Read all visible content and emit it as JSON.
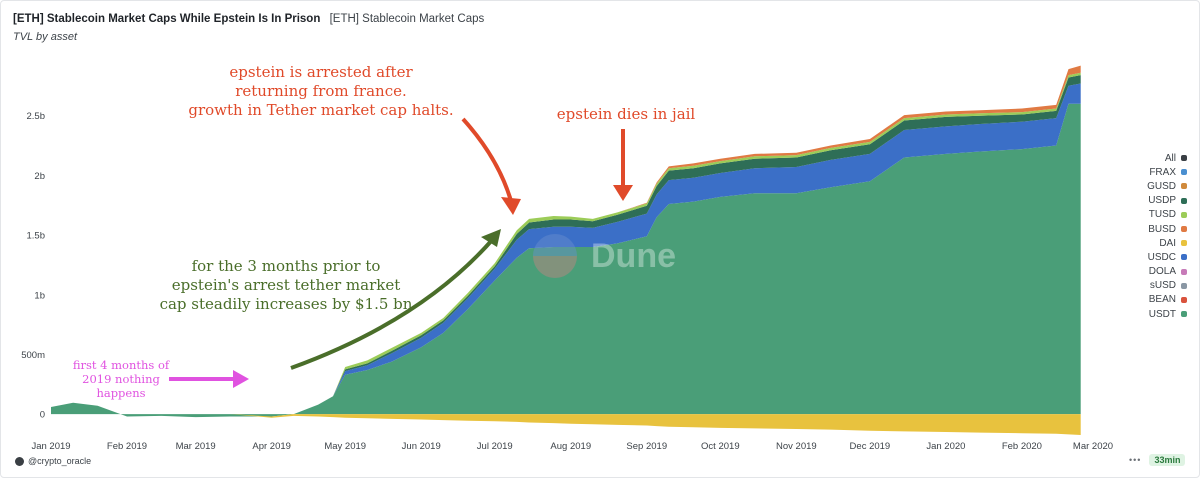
{
  "header": {
    "title": "[ETH] Stablecoin Market Caps While Epstein Is In Prison",
    "tab_label": "[ETH] Stablecoin Market Caps",
    "subtitle": "TVL by asset"
  },
  "watermark": "Dune",
  "footer": {
    "handle": "@crypto_oracle",
    "more": "•••",
    "refresh": "33min"
  },
  "annotations": {
    "arrest": [
      "epstein is arrested after",
      "returning from france.",
      "growth in Tether market cap halts."
    ],
    "dies": "epstein dies in jail",
    "prior": [
      "for the 3  months prior to",
      "epstein's arrest tether market",
      "cap steadily increases by $1.5 bn"
    ],
    "first": [
      "first 4 months of",
      "2019 nothing",
      "happens"
    ]
  },
  "colors": {
    "USDT": "#4a9e78",
    "USDC": "#3b6fc7",
    "USDP": "#2e6e57",
    "BUSD": "#e07a43",
    "TUSD": "#9ccc58",
    "DAI": "#e8c23e",
    "FRAX": "#4a8fd0",
    "GUSD": "#d08a3c",
    "DOLA": "#c77ab8",
    "sUSD": "#8a97a4",
    "BEAN": "#d9533d",
    "All": "#3a3f44",
    "arrest_annotation": "#e04a2a",
    "prior_annotation": "#4a6e2a",
    "first_annotation": "#e052e0"
  },
  "chart_data": {
    "type": "area",
    "stacked": true,
    "title": "TVL by asset",
    "x": [
      "2019-01-01",
      "2019-01-10",
      "2019-01-20",
      "2019-02-01",
      "2019-02-15",
      "2019-03-01",
      "2019-03-15",
      "2019-04-01",
      "2019-04-10",
      "2019-04-20",
      "2019-04-26",
      "2019-05-01",
      "2019-05-10",
      "2019-05-20",
      "2019-06-01",
      "2019-06-10",
      "2019-06-20",
      "2019-07-01",
      "2019-07-10",
      "2019-07-15",
      "2019-07-25",
      "2019-08-01",
      "2019-08-10",
      "2019-08-20",
      "2019-09-01",
      "2019-09-05",
      "2019-09-10",
      "2019-09-20",
      "2019-10-01",
      "2019-10-15",
      "2019-11-01",
      "2019-11-15",
      "2019-12-01",
      "2019-12-15",
      "2020-01-01",
      "2020-01-15",
      "2020-02-01",
      "2020-02-15",
      "2020-02-20",
      "2020-02-25"
    ],
    "series": [
      {
        "name": "USDT",
        "values": [
          60,
          95,
          70,
          -20,
          -15,
          -25,
          -20,
          -20,
          0,
          80,
          150,
          330,
          370,
          440,
          560,
          680,
          880,
          1120,
          1310,
          1390,
          1400,
          1400,
          1400,
          1430,
          1490,
          1650,
          1760,
          1780,
          1820,
          1850,
          1850,
          1900,
          1950,
          2150,
          2180,
          2200,
          2220,
          2250,
          2600,
          2600
        ]
      },
      {
        "name": "USDC",
        "values": [
          0,
          0,
          0,
          0,
          0,
          0,
          0,
          0,
          0,
          0,
          0,
          30,
          40,
          70,
          80,
          85,
          90,
          100,
          150,
          160,
          170,
          170,
          160,
          180,
          190,
          190,
          200,
          200,
          200,
          210,
          220,
          230,
          230,
          230,
          230,
          230,
          230,
          230,
          150,
          170
        ]
      },
      {
        "name": "USDP",
        "values": [
          0,
          0,
          0,
          0,
          0,
          0,
          0,
          0,
          0,
          0,
          0,
          15,
          15,
          20,
          20,
          20,
          20,
          20,
          50,
          55,
          60,
          60,
          55,
          60,
          65,
          70,
          80,
          80,
          80,
          80,
          80,
          80,
          80,
          80,
          80,
          70,
          60,
          60,
          70,
          70
        ]
      },
      {
        "name": "TUSD",
        "values": [
          0,
          0,
          0,
          0,
          0,
          0,
          0,
          0,
          0,
          0,
          0,
          20,
          25,
          25,
          20,
          20,
          25,
          25,
          30,
          30,
          30,
          25,
          20,
          20,
          20,
          20,
          20,
          20,
          20,
          20,
          20,
          20,
          20,
          20,
          20,
          20,
          20,
          20,
          20,
          20
        ]
      },
      {
        "name": "BUSD",
        "values": [
          0,
          0,
          0,
          0,
          0,
          0,
          0,
          0,
          0,
          0,
          0,
          0,
          0,
          0,
          0,
          0,
          0,
          0,
          0,
          0,
          0,
          0,
          0,
          0,
          5,
          10,
          15,
          20,
          20,
          20,
          20,
          20,
          25,
          25,
          25,
          25,
          30,
          30,
          50,
          60
        ]
      },
      {
        "name": "DAI",
        "values": [
          0,
          0,
          0,
          0,
          0,
          0,
          0,
          -10,
          -15,
          -20,
          -25,
          -30,
          -35,
          -40,
          -45,
          -50,
          -55,
          -60,
          -65,
          -70,
          -75,
          -80,
          -85,
          -90,
          -95,
          -100,
          -105,
          -110,
          -115,
          -120,
          -125,
          -130,
          -140,
          -145,
          -150,
          -155,
          -160,
          -165,
          -170,
          -175
        ]
      },
      {
        "name": "FRAX",
        "values": [
          0,
          0,
          0,
          0,
          0,
          0,
          0,
          0,
          0,
          0,
          0,
          0,
          0,
          0,
          0,
          0,
          0,
          0,
          0,
          0,
          0,
          0,
          0,
          0,
          0,
          0,
          0,
          0,
          0,
          0,
          0,
          0,
          0,
          0,
          0,
          0,
          0,
          0,
          0,
          0
        ]
      },
      {
        "name": "GUSD",
        "values": [
          0,
          0,
          0,
          0,
          0,
          0,
          0,
          0,
          0,
          0,
          0,
          0,
          0,
          0,
          0,
          0,
          0,
          0,
          0,
          0,
          0,
          0,
          0,
          0,
          0,
          0,
          0,
          0,
          0,
          0,
          0,
          0,
          0,
          0,
          0,
          0,
          0,
          0,
          0,
          0
        ]
      },
      {
        "name": "DOLA",
        "values": [
          0,
          0,
          0,
          0,
          0,
          0,
          0,
          0,
          0,
          0,
          0,
          0,
          0,
          0,
          0,
          0,
          0,
          0,
          0,
          0,
          0,
          0,
          0,
          0,
          0,
          0,
          0,
          0,
          0,
          0,
          0,
          0,
          0,
          0,
          0,
          0,
          0,
          0,
          0,
          0
        ]
      },
      {
        "name": "sUSD",
        "values": [
          0,
          0,
          0,
          0,
          0,
          0,
          0,
          0,
          0,
          0,
          0,
          0,
          0,
          0,
          0,
          0,
          0,
          0,
          0,
          0,
          0,
          0,
          0,
          0,
          0,
          0,
          0,
          0,
          0,
          0,
          0,
          0,
          0,
          0,
          0,
          0,
          0,
          0,
          0,
          0
        ]
      },
      {
        "name": "BEAN",
        "values": [
          0,
          0,
          0,
          0,
          0,
          0,
          0,
          0,
          0,
          0,
          0,
          0,
          0,
          0,
          0,
          0,
          0,
          0,
          0,
          0,
          0,
          0,
          0,
          0,
          0,
          0,
          0,
          0,
          0,
          0,
          0,
          0,
          0,
          0,
          0,
          0,
          0,
          0,
          0,
          0
        ]
      }
    ],
    "x_ticks": [
      "Jan 2019",
      "Feb 2019",
      "Mar 2019",
      "Apr 2019",
      "May 2019",
      "Jun 2019",
      "Jul 2019",
      "Aug 2019",
      "Sep 2019",
      "Oct 2019",
      "Nov 2019",
      "Dec 2019",
      "Jan 2020",
      "Feb 2020",
      "Mar 2020"
    ],
    "y_ticks": [
      0,
      500,
      1000,
      1500,
      2000,
      2500
    ],
    "y_tick_labels": [
      "0",
      "500m",
      "1b",
      "1.5b",
      "2b",
      "2.5b"
    ],
    "ylim": [
      -200,
      3000
    ],
    "legend": [
      "All",
      "FRAX",
      "GUSD",
      "USDP",
      "TUSD",
      "BUSD",
      "DAI",
      "USDC",
      "DOLA",
      "sUSD",
      "BEAN",
      "USDT"
    ],
    "legend_position": "right",
    "grid": false
  }
}
